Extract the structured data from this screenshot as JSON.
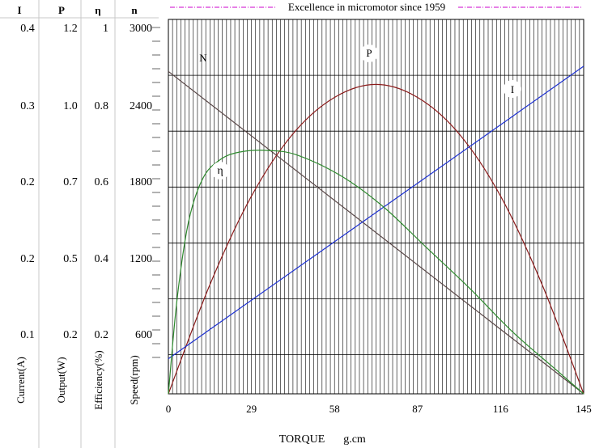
{
  "header": {
    "banner": "Excellence in micromotor since 1959",
    "col_current": "I",
    "col_output": "P",
    "col_efficiency": "η",
    "col_speed": "n"
  },
  "axis_titles": {
    "current": "Current(A)",
    "output": "Output(W)",
    "efficiency": "Efficiency(%)",
    "speed": "Speed(rpm)",
    "torque": "TORQUE",
    "torque_unit": "g.cm"
  },
  "scale_rows": [
    {
      "current": "0.4",
      "output": "1.2",
      "efficiency": "1",
      "speed": "3000"
    },
    {
      "current": "0.3",
      "output": "1.0",
      "efficiency": "0.8",
      "speed": "2400"
    },
    {
      "current": "0.2",
      "output": "0.7",
      "efficiency": "0.6",
      "speed": "1800"
    },
    {
      "current": "0.2",
      "output": "0.5",
      "efficiency": "0.4",
      "speed": "1200"
    },
    {
      "current": "0.1",
      "output": "0.2",
      "efficiency": "0.2",
      "speed": "600"
    }
  ],
  "colors": {
    "N": "#5a4848",
    "P": "#8b1a1a",
    "I": "#1e32d2",
    "eta": "#2e8b2e",
    "banner": "#cc00cc",
    "grid": "#000000"
  },
  "chart_data": {
    "type": "line",
    "xlabel": "TORQUE g.cm",
    "x_ticks": [
      "0",
      "29",
      "58",
      "87",
      "116",
      "145"
    ],
    "xlim": [
      0,
      145
    ],
    "grid": true,
    "series": [
      {
        "name": "N",
        "unit": "rpm",
        "ylim": [
          0,
          3600
        ],
        "points": [
          [
            0,
            3100
          ],
          [
            145,
            0
          ]
        ]
      },
      {
        "name": "P",
        "unit": "W",
        "ylim": [
          0,
          1.44
        ],
        "points": [
          [
            0,
            0
          ],
          [
            14.5,
            0.42
          ],
          [
            29,
            0.76
          ],
          [
            43.5,
            1.0
          ],
          [
            58,
            1.14
          ],
          [
            72.5,
            1.19
          ],
          [
            87,
            1.14
          ],
          [
            101.5,
            1.0
          ],
          [
            116,
            0.76
          ],
          [
            130.5,
            0.42
          ],
          [
            145,
            0
          ]
        ]
      },
      {
        "name": "I",
        "unit": "A",
        "ylim": [
          0,
          0.48
        ],
        "points": [
          [
            0,
            0.045
          ],
          [
            145,
            0.42
          ]
        ]
      },
      {
        "name": "η",
        "unit": "%",
        "ylim": [
          0,
          1.2
        ],
        "points": [
          [
            0,
            0
          ],
          [
            3,
            0.3
          ],
          [
            7,
            0.55
          ],
          [
            12,
            0.69
          ],
          [
            18,
            0.75
          ],
          [
            25,
            0.775
          ],
          [
            35,
            0.78
          ],
          [
            45,
            0.765
          ],
          [
            60,
            0.7
          ],
          [
            75,
            0.6
          ],
          [
            90,
            0.47
          ],
          [
            105,
            0.34
          ],
          [
            120,
            0.2
          ],
          [
            135,
            0.08
          ],
          [
            145,
            0
          ]
        ]
      }
    ]
  }
}
